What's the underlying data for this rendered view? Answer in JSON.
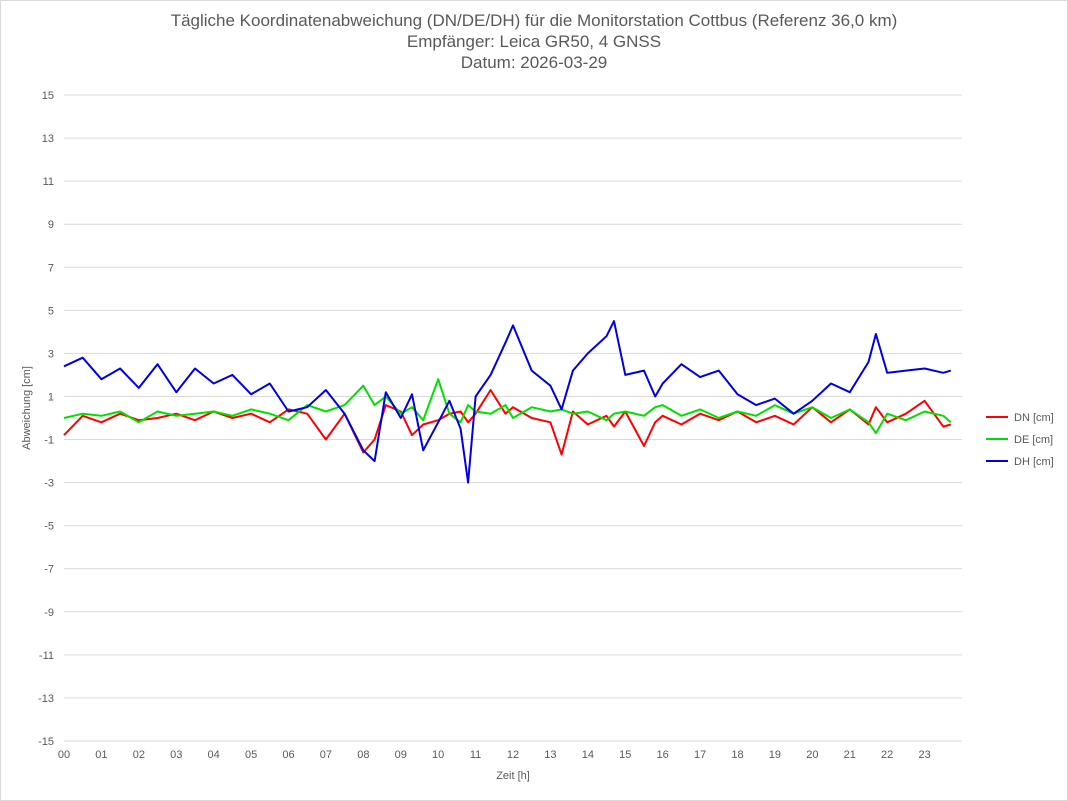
{
  "chart_data": {
    "type": "line",
    "title_lines": [
      "Tägliche Koordinatenabweichung (DN/DE/DH) für die Monitorstation Cottbus (Referenz 36,0 km)",
      "Empfänger: Leica GR50, 4 GNSS",
      "Datum: 2026-03-29"
    ],
    "xlabel": "Zeit [h]",
    "ylabel": "Abweichung [cm]",
    "xlim": [
      0,
      24
    ],
    "ylim": [
      -15,
      15
    ],
    "x_ticks": [
      0,
      1,
      2,
      3,
      4,
      5,
      6,
      7,
      8,
      9,
      10,
      11,
      12,
      13,
      14,
      15,
      16,
      17,
      18,
      19,
      20,
      21,
      22,
      23
    ],
    "x_tick_labels": [
      "00",
      "01",
      "02",
      "03",
      "04",
      "05",
      "06",
      "07",
      "08",
      "09",
      "10",
      "11",
      "12",
      "13",
      "14",
      "15",
      "16",
      "17",
      "18",
      "19",
      "20",
      "21",
      "22",
      "23"
    ],
    "y_ticks": [
      15,
      13,
      11,
      9,
      7,
      5,
      3,
      1,
      -1,
      -3,
      -5,
      -7,
      -9,
      -11,
      -13,
      -15
    ],
    "y_tick_labels": [
      "15",
      "13",
      "11",
      "9",
      "7",
      "5",
      "3",
      "1",
      "-1",
      "-3",
      "-5",
      "-7",
      "-9",
      "-11",
      "-13",
      "-15"
    ],
    "grid": "horizontal",
    "legend_position": "right",
    "x": [
      0.0,
      0.5,
      1.0,
      1.5,
      2.0,
      2.5,
      3.0,
      3.5,
      4.0,
      4.5,
      5.0,
      5.5,
      6.0,
      6.5,
      7.0,
      7.5,
      8.0,
      8.3,
      8.6,
      9.0,
      9.3,
      9.6,
      10.0,
      10.3,
      10.6,
      10.8,
      11.0,
      11.4,
      11.8,
      12.0,
      12.5,
      13.0,
      13.3,
      13.6,
      14.0,
      14.5,
      14.7,
      15.0,
      15.5,
      15.8,
      16.0,
      16.5,
      17.0,
      17.5,
      18.0,
      18.5,
      19.0,
      19.5,
      20.0,
      20.5,
      21.0,
      21.5,
      21.7,
      22.0,
      22.5,
      23.0,
      23.5,
      23.7
    ],
    "series": [
      {
        "name": "DN [cm]",
        "color": "#ff0000",
        "values": [
          -0.8,
          0.1,
          -0.2,
          0.2,
          -0.1,
          0.0,
          0.2,
          -0.1,
          0.3,
          0.0,
          0.2,
          -0.2,
          0.4,
          0.2,
          -1.0,
          0.2,
          -1.6,
          -1.0,
          0.6,
          0.3,
          -0.8,
          -0.3,
          -0.1,
          0.2,
          0.3,
          -0.2,
          0.2,
          1.3,
          0.2,
          0.5,
          0.0,
          -0.2,
          -1.7,
          0.3,
          -0.3,
          0.1,
          -0.4,
          0.3,
          -1.3,
          -0.2,
          0.1,
          -0.3,
          0.2,
          -0.1,
          0.3,
          -0.2,
          0.1,
          -0.3,
          0.5,
          -0.2,
          0.4,
          -0.3,
          0.5,
          -0.2,
          0.2,
          0.8,
          -0.4,
          -0.3
        ]
      },
      {
        "name": "DE [cm]",
        "color": "#00e000",
        "values": [
          0.0,
          0.2,
          0.1,
          0.3,
          -0.2,
          0.3,
          0.1,
          0.2,
          0.3,
          0.1,
          0.4,
          0.2,
          -0.1,
          0.6,
          0.3,
          0.6,
          1.5,
          0.6,
          1.0,
          0.2,
          0.5,
          -0.1,
          1.8,
          0.2,
          -0.2,
          0.6,
          0.3,
          0.2,
          0.6,
          0.0,
          0.5,
          0.3,
          0.4,
          0.2,
          0.3,
          -0.1,
          0.2,
          0.3,
          0.1,
          0.5,
          0.6,
          0.1,
          0.4,
          0.0,
          0.3,
          0.1,
          0.6,
          0.2,
          0.5,
          0.0,
          0.4,
          -0.2,
          -0.7,
          0.2,
          -0.1,
          0.3,
          0.1,
          -0.2
        ]
      },
      {
        "name": "DH [cm]",
        "color": "#0000e0",
        "values": [
          2.4,
          2.8,
          1.8,
          2.3,
          1.4,
          2.5,
          1.2,
          2.3,
          1.6,
          2.0,
          1.1,
          1.6,
          0.3,
          0.5,
          1.3,
          0.2,
          -1.5,
          -2.0,
          1.2,
          0.0,
          1.1,
          -1.5,
          -0.2,
          0.8,
          -0.5,
          -3.0,
          1.0,
          2.0,
          3.5,
          4.3,
          2.2,
          1.5,
          0.4,
          2.2,
          3.0,
          3.8,
          4.5,
          2.0,
          2.2,
          1.0,
          1.6,
          2.5,
          1.9,
          2.2,
          1.1,
          0.6,
          0.9,
          0.2,
          0.8,
          1.6,
          1.2,
          2.6,
          3.9,
          2.1,
          2.2,
          2.3,
          2.1,
          2.2
        ]
      }
    ]
  }
}
